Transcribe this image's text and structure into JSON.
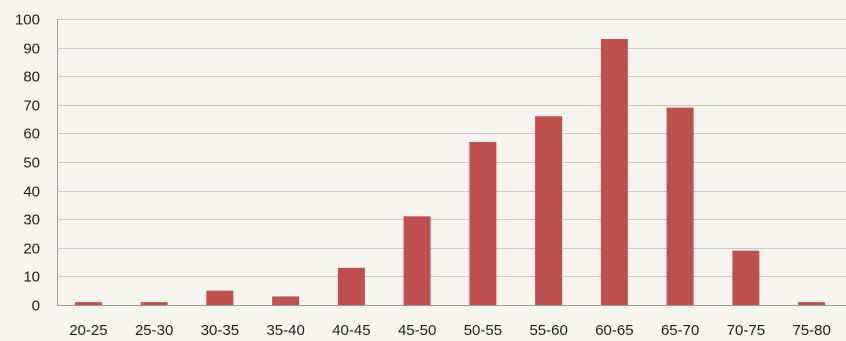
{
  "colors": {
    "background": "#F6F4EE",
    "bar": "#C0504D",
    "gridline": "#C9C9C9",
    "axis": "#9A9A9A",
    "text": "#1F1F1F"
  },
  "chart_data": {
    "type": "bar",
    "categories": [
      "20-25",
      "25-30",
      "30-35",
      "35-40",
      "40-45",
      "45-50",
      "50-55",
      "55-60",
      "60-65",
      "65-70",
      "70-75",
      "75-80"
    ],
    "values": [
      1,
      1,
      5,
      3,
      13,
      31,
      57,
      66,
      93,
      69,
      19,
      1
    ],
    "ylim": [
      0,
      100
    ],
    "yticks": [
      0,
      10,
      20,
      30,
      40,
      50,
      60,
      70,
      80,
      90,
      100
    ],
    "grid": true,
    "legend": "none",
    "title": "",
    "xlabel": "",
    "ylabel": ""
  }
}
